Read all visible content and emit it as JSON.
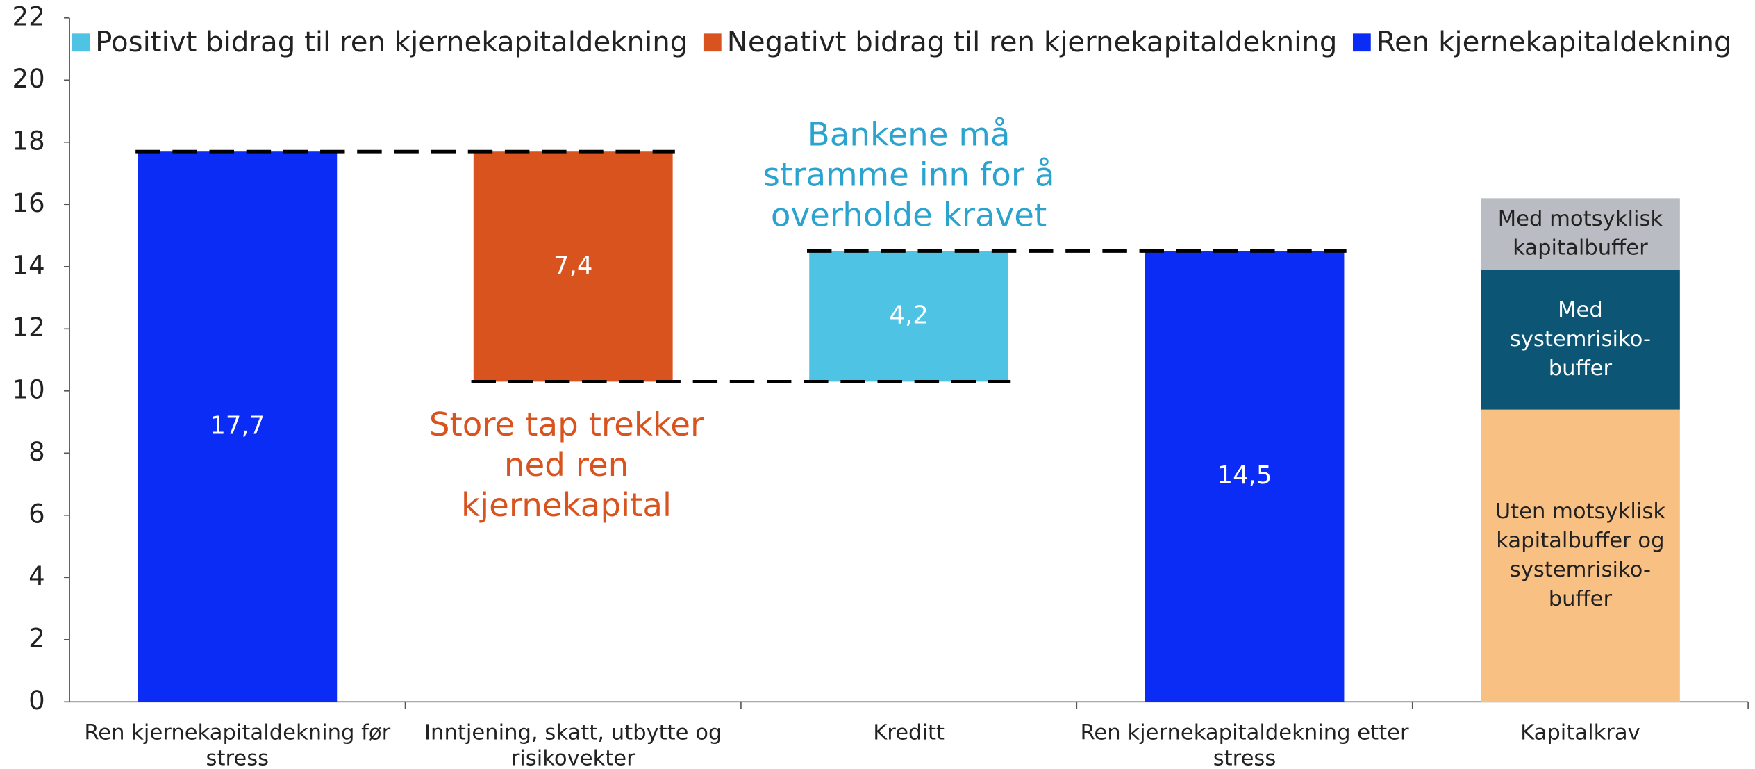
{
  "chart_data": {
    "type": "waterfall",
    "ylim": [
      0,
      22
    ],
    "yticks": [
      0,
      2,
      4,
      6,
      8,
      10,
      12,
      14,
      16,
      18,
      20,
      22
    ],
    "categories": [
      [
        "Ren kjernekapitaldekning før",
        "stress"
      ],
      [
        "Inntjening, skatt, utbytte og",
        "risikovekter"
      ],
      [
        "Kreditt"
      ],
      [
        "Ren kjernekapitaldekning etter",
        "stress"
      ],
      [
        "Kapitalkrav"
      ]
    ],
    "legend": [
      {
        "name": "Positivt bidrag til ren kjernekapitaldekning",
        "color": "#4fc3e3"
      },
      {
        "name": "Negativt bidrag til ren kjernekapitaldekning",
        "color": "#d9531e"
      },
      {
        "name": "Ren kjernekapitaldekning",
        "color": "#0a2cf5"
      }
    ],
    "steps": [
      {
        "value": 17.7,
        "value_label": "17,7",
        "kind": "total"
      },
      {
        "value": 7.4,
        "value_label": "7,4",
        "kind": "negative"
      },
      {
        "value": 4.2,
        "value_label": "4,2",
        "kind": "positive"
      },
      {
        "value": 14.5,
        "value_label": "14,5",
        "kind": "total"
      }
    ],
    "stack": [
      {
        "lines": [
          "Uten motsyklisk",
          "kapitalbuffer og",
          "systemrisiko-",
          "buffer"
        ],
        "value": 9.4,
        "color": "#f9c083",
        "text_color": "#222222"
      },
      {
        "lines": [
          "Med",
          "systemrisiko-",
          "buffer"
        ],
        "value": 4.5,
        "color": "#0c5574",
        "text_color": "#ffffff"
      },
      {
        "lines": [
          "Med motsyklisk",
          "kapitalbuffer"
        ],
        "value": 2.3,
        "color": "#b9bcc2",
        "text_color": "#222222"
      }
    ],
    "annotations": [
      {
        "lines": [
          "Store tap trekker",
          "ned ren",
          "kjernekapital"
        ],
        "color": "#d9531e"
      },
      {
        "lines": [
          "Bankene må",
          "stramme inn for å",
          "overholde kravet"
        ],
        "color": "#2aa3cf"
      }
    ],
    "dashed_connectors": true
  }
}
